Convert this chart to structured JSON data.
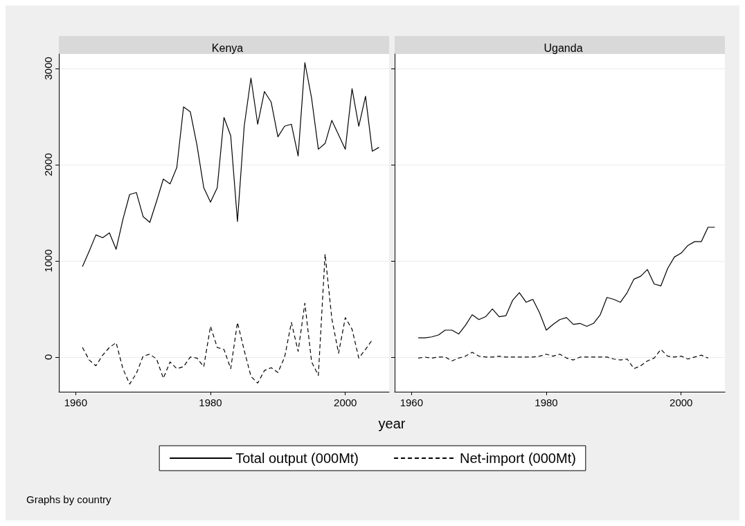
{
  "chart_data": [
    {
      "type": "line",
      "title": "Kenya",
      "xlabel": "year",
      "legend": "bottom",
      "grid": "y",
      "annotations": [
        "Graphs by country"
      ],
      "xlim": [
        1957.5,
        2006.5
      ],
      "xticks": [
        1960,
        1980,
        2000
      ],
      "ylim": [
        -360,
        3150
      ],
      "yticks": [
        0,
        1000,
        2000,
        3000
      ],
      "x": [
        1961,
        1962,
        1963,
        1964,
        1965,
        1966,
        1967,
        1968,
        1969,
        1970,
        1971,
        1972,
        1973,
        1974,
        1975,
        1976,
        1977,
        1978,
        1979,
        1980,
        1981,
        1982,
        1983,
        1984,
        1985,
        1986,
        1987,
        1988,
        1989,
        1990,
        1991,
        1992,
        1993,
        1994,
        1995,
        1996,
        1997,
        1998,
        1999,
        2000,
        2001,
        2002,
        2003,
        2004,
        2005
      ],
      "series": [
        {
          "name": "Total output (000Mt)",
          "color": "#000000",
          "line_style": "solid",
          "values": [
            940,
            1100,
            1270,
            1240,
            1290,
            1120,
            1430,
            1690,
            1710,
            1460,
            1400,
            1620,
            1850,
            1800,
            1970,
            2600,
            2550,
            2200,
            1760,
            1610,
            1760,
            2490,
            2300,
            1410,
            2400,
            2900,
            2420,
            2760,
            2650,
            2290,
            2400,
            2420,
            2090,
            3060,
            2690,
            2160,
            2220,
            2460,
            2310,
            2160,
            2790,
            2400,
            2710,
            2140,
            2180
          ]
        },
        {
          "name": "Net-import (000Mt)",
          "color": "#000000",
          "line_style": "dashed",
          "values": [
            100,
            -30,
            -90,
            20,
            100,
            150,
            -120,
            -280,
            -170,
            10,
            30,
            -20,
            -220,
            -50,
            -120,
            -100,
            0,
            -10,
            -100,
            320,
            100,
            80,
            -120,
            360,
            70,
            -200,
            -270,
            -140,
            -110,
            -160,
            0,
            360,
            60,
            560,
            -50,
            -190,
            1070,
            400,
            40,
            410,
            290,
            -10,
            80,
            180,
            null
          ]
        }
      ]
    },
    {
      "type": "line",
      "title": "Uganda",
      "grid": "y",
      "tick_labels": "x",
      "xlim": [
        1957.5,
        2006.5
      ],
      "xticks": [
        1960,
        1980,
        2000
      ],
      "ylim": [
        -360,
        3150
      ],
      "yticks": [
        0,
        1000,
        2000,
        3000
      ],
      "x": [
        1961,
        1962,
        1963,
        1964,
        1965,
        1966,
        1967,
        1968,
        1969,
        1970,
        1971,
        1972,
        1973,
        1974,
        1975,
        1976,
        1977,
        1978,
        1979,
        1980,
        1981,
        1982,
        1983,
        1984,
        1985,
        1986,
        1987,
        1988,
        1989,
        1990,
        1991,
        1992,
        1993,
        1994,
        1995,
        1996,
        1997,
        1998,
        1999,
        2000,
        2001,
        2002,
        2003,
        2004,
        2005
      ],
      "series": [
        {
          "name": "Total output (000Mt)",
          "color": "#000000",
          "line_style": "solid",
          "values": [
            200,
            200,
            210,
            230,
            280,
            280,
            240,
            330,
            440,
            390,
            420,
            500,
            420,
            430,
            590,
            670,
            570,
            600,
            460,
            280,
            340,
            390,
            410,
            340,
            350,
            320,
            350,
            440,
            620,
            600,
            570,
            670,
            810,
            840,
            910,
            760,
            740,
            920,
            1040,
            1080,
            1160,
            1200,
            1200,
            1350,
            1350
          ]
        },
        {
          "name": "Net-import (000Mt)",
          "color": "#000000",
          "line_style": "dashed",
          "values": [
            -10,
            0,
            -10,
            0,
            0,
            -40,
            -10,
            10,
            50,
            10,
            0,
            0,
            10,
            0,
            0,
            0,
            0,
            0,
            10,
            30,
            10,
            30,
            -10,
            -30,
            0,
            0,
            0,
            0,
            0,
            -20,
            -30,
            -20,
            -120,
            -90,
            -40,
            -10,
            80,
            10,
            0,
            10,
            -20,
            0,
            20,
            -10,
            null
          ]
        }
      ]
    }
  ]
}
